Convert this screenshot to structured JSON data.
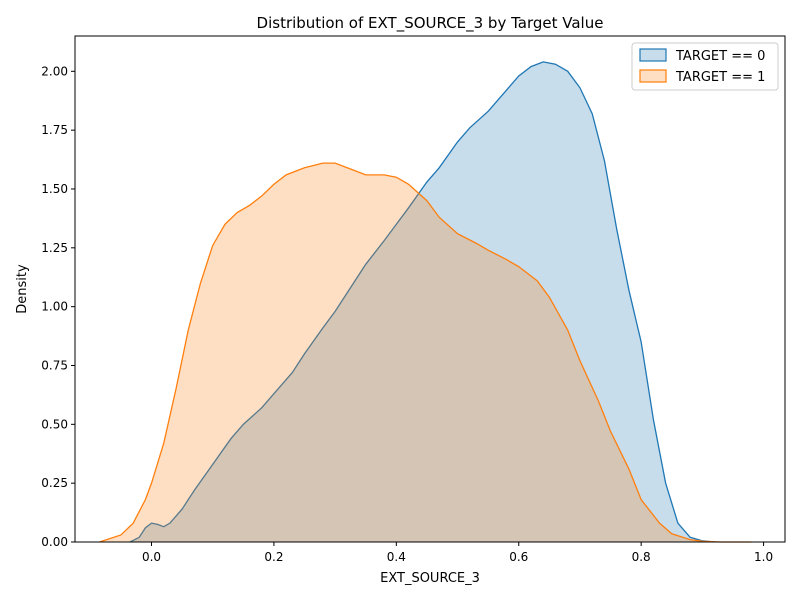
{
  "chart_data": {
    "type": "area",
    "title": "Distribution of EXT_SOURCE_3 by Target Value",
    "xlabel": "EXT_SOURCE_3",
    "ylabel": "Density",
    "xlim": [
      -0.125,
      1.035
    ],
    "ylim": [
      0,
      2.15
    ],
    "xticks": [
      0.0,
      0.2,
      0.4,
      0.6,
      0.8,
      1.0
    ],
    "xtick_labels": [
      "0.0",
      "0.2",
      "0.4",
      "0.6",
      "0.8",
      "1.0"
    ],
    "yticks": [
      0,
      0.25,
      0.5,
      0.75,
      1.0,
      1.25,
      1.5,
      1.75,
      2.0
    ],
    "ytick_labels": [
      "0.00",
      "0.25",
      "0.50",
      "0.75",
      "1.00",
      "1.25",
      "1.50",
      "1.75",
      "2.00"
    ],
    "grid": false,
    "legend_position": "top-right",
    "series": [
      {
        "name": "TARGET == 0",
        "color": "#1f77b4",
        "fill": "#1f77b4",
        "fill_opacity": 0.25,
        "x": [
          -0.035,
          -0.02,
          -0.01,
          0.0,
          0.01,
          0.02,
          0.03,
          0.05,
          0.07,
          0.1,
          0.13,
          0.15,
          0.18,
          0.2,
          0.23,
          0.25,
          0.28,
          0.3,
          0.33,
          0.35,
          0.38,
          0.4,
          0.42,
          0.45,
          0.47,
          0.5,
          0.52,
          0.55,
          0.57,
          0.6,
          0.62,
          0.64,
          0.66,
          0.68,
          0.7,
          0.72,
          0.74,
          0.76,
          0.78,
          0.8,
          0.82,
          0.84,
          0.86,
          0.88,
          0.9,
          0.92
        ],
        "y": [
          0.0,
          0.02,
          0.06,
          0.08,
          0.075,
          0.065,
          0.08,
          0.14,
          0.22,
          0.33,
          0.44,
          0.5,
          0.57,
          0.63,
          0.72,
          0.8,
          0.91,
          0.98,
          1.1,
          1.18,
          1.28,
          1.35,
          1.42,
          1.53,
          1.59,
          1.7,
          1.76,
          1.83,
          1.89,
          1.98,
          2.02,
          2.04,
          2.03,
          2.0,
          1.93,
          1.82,
          1.62,
          1.33,
          1.07,
          0.85,
          0.52,
          0.25,
          0.08,
          0.02,
          0.005,
          0.0
        ]
      },
      {
        "name": "TARGET == 1",
        "color": "#ff7f0e",
        "fill": "#ff7f0e",
        "fill_opacity": 0.25,
        "x": [
          -0.085,
          -0.05,
          -0.03,
          -0.01,
          0.0,
          0.02,
          0.04,
          0.06,
          0.08,
          0.1,
          0.12,
          0.14,
          0.16,
          0.18,
          0.2,
          0.22,
          0.25,
          0.28,
          0.3,
          0.33,
          0.35,
          0.38,
          0.4,
          0.42,
          0.45,
          0.47,
          0.5,
          0.53,
          0.55,
          0.58,
          0.6,
          0.63,
          0.65,
          0.68,
          0.7,
          0.73,
          0.75,
          0.78,
          0.8,
          0.83,
          0.85,
          0.88,
          0.9,
          0.93,
          0.95,
          0.98
        ],
        "y": [
          0.0,
          0.03,
          0.08,
          0.18,
          0.25,
          0.42,
          0.65,
          0.9,
          1.1,
          1.26,
          1.35,
          1.4,
          1.43,
          1.47,
          1.52,
          1.56,
          1.59,
          1.61,
          1.61,
          1.58,
          1.56,
          1.56,
          1.55,
          1.52,
          1.45,
          1.38,
          1.31,
          1.27,
          1.24,
          1.2,
          1.17,
          1.11,
          1.04,
          0.9,
          0.77,
          0.6,
          0.47,
          0.31,
          0.18,
          0.08,
          0.035,
          0.01,
          0.003,
          0.0,
          0.0,
          0.0
        ]
      }
    ]
  }
}
